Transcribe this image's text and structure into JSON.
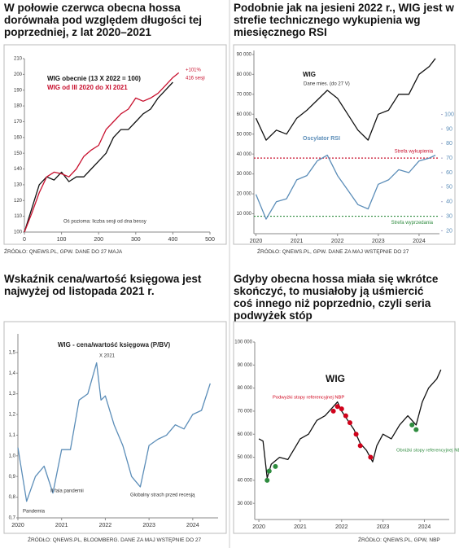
{
  "chart_data": [
    {
      "type": "line",
      "title": "W połowie czerwca obecna hossa dorównała pod względem długości tej poprzedniej, z lat 2020–2021",
      "source": "ŹRÓDŁO: QNEWS.PL, GPW. DANE DO 27 MAJA",
      "annotations": [
        "+101%",
        "416 sesji",
        "Oś pozioma: liczba sesji od dna bessy"
      ],
      "x": [
        0,
        20,
        40,
        60,
        80,
        100,
        120,
        140,
        160,
        180,
        200,
        220,
        240,
        260,
        280,
        300,
        320,
        340,
        360,
        380,
        400,
        416
      ],
      "series": [
        {
          "name": "WIG obecnie (13 X 2022 = 100)",
          "color": "#111111",
          "values": [
            100,
            115,
            130,
            135,
            133,
            138,
            132,
            135,
            135,
            140,
            145,
            150,
            160,
            165,
            165,
            170,
            175,
            178,
            185,
            190,
            195,
            null
          ]
        },
        {
          "name": "WIG od III 2020 do XI 2021",
          "color": "#c8102e",
          "values": [
            100,
            112,
            125,
            135,
            138,
            137,
            135,
            140,
            148,
            152,
            155,
            165,
            170,
            175,
            178,
            185,
            183,
            185,
            188,
            193,
            198,
            201
          ]
        }
      ],
      "xlim": [
        0,
        500
      ],
      "xticks": [
        0,
        100,
        200,
        300,
        400,
        500
      ],
      "ylim": [
        100,
        210
      ],
      "yticks": [
        100,
        110,
        120,
        130,
        140,
        150,
        160,
        170,
        180,
        190,
        200,
        210
      ]
    },
    {
      "type": "line",
      "title": "Podobnie jak na jesieni 2022 r., WIG jest w strefie technicznego wykupienia wg miesięcznego RSI",
      "source": "ŹRÓDŁO: QNEWS.PL, GPW. DANE ZA MAJ WSTĘPNIE DO 27",
      "annotations": [
        "Dane mies. (do 27 V)"
      ],
      "x": [
        2020.0,
        2020.25,
        2020.5,
        2020.75,
        2021.0,
        2021.25,
        2021.5,
        2021.75,
        2022.0,
        2022.25,
        2022.5,
        2022.75,
        2023.0,
        2023.25,
        2023.5,
        2023.75,
        2024.0,
        2024.25,
        2024.4
      ],
      "series": [
        {
          "name": "WIG",
          "color": "#111111",
          "values": [
            58000,
            47000,
            52000,
            50000,
            58000,
            62000,
            67000,
            72000,
            68000,
            60000,
            52000,
            47000,
            60000,
            62000,
            70000,
            70000,
            80000,
            84000,
            88000
          ]
        },
        {
          "name": "Oscylator RSI",
          "color": "#5b8db8",
          "axis": "y2",
          "values": [
            45,
            28,
            40,
            42,
            55,
            58,
            68,
            72,
            58,
            48,
            38,
            35,
            52,
            55,
            62,
            60,
            68,
            70,
            72
          ]
        }
      ],
      "reference_lines": [
        {
          "value": 70,
          "label": "Strefa wykupienia",
          "color": "#c8102e",
          "axis": "y2"
        },
        {
          "value": 30,
          "label": "Strefa wyprzedania",
          "color": "#2e8b3e",
          "axis": "y2"
        }
      ],
      "xlim": [
        2019.95,
        2024.5
      ],
      "xticks": [
        2020,
        2021,
        2022,
        2023,
        2024
      ],
      "ylim": [
        0,
        92000
      ],
      "yticks": [
        {
          "value": 10000,
          "label": "10 000"
        },
        {
          "value": 20000,
          "label": "20 000"
        },
        {
          "value": 30000,
          "label": "30 000"
        },
        {
          "value": 40000,
          "label": "40 000"
        },
        {
          "value": 50000,
          "label": "50 000"
        },
        {
          "value": 60000,
          "label": "60 000"
        },
        {
          "value": 70000,
          "label": "70 000"
        },
        {
          "value": 80000,
          "label": "80 000"
        },
        {
          "value": 90000,
          "label": "90 000"
        }
      ],
      "y2lim": [
        18,
        144
      ],
      "y2ticks": [
        20,
        30,
        40,
        50,
        60,
        70,
        80,
        90,
        100
      ]
    },
    {
      "type": "line",
      "title": "Wskaźnik cena/wartość księgowa jest najwyżej od listopada 2021 r.",
      "source": "ŹRÓDŁO: QNEWS.PL, BLOOMBERG. DANE ZA MAJ WSTĘPNIE DO 27",
      "annotations": [
        "WIG - cena/wartość księgowa (P/BV)",
        "X 2021",
        "Pandemia",
        "II fala pandemii",
        "Globalny strach przed recesją"
      ],
      "x": [
        2020.0,
        2020.2,
        2020.4,
        2020.6,
        2020.8,
        2021.0,
        2021.2,
        2021.4,
        2021.6,
        2021.8,
        2021.9,
        2022.0,
        2022.2,
        2022.4,
        2022.6,
        2022.8,
        2022.9,
        2023.0,
        2023.2,
        2023.4,
        2023.6,
        2023.8,
        2024.0,
        2024.2,
        2024.4
      ],
      "series": [
        {
          "name": "P/BV",
          "color": "#5b8db8",
          "values": [
            1.04,
            0.78,
            0.9,
            0.95,
            0.82,
            1.03,
            1.03,
            1.27,
            1.3,
            1.45,
            1.27,
            1.29,
            1.15,
            1.05,
            0.9,
            0.85,
            0.95,
            1.05,
            1.08,
            1.1,
            1.15,
            1.13,
            1.2,
            1.22,
            1.35
          ]
        }
      ],
      "xlim": [
        2020,
        2024.58
      ],
      "xticks": [
        2020,
        2021,
        2022,
        2023,
        2024
      ],
      "ylim": [
        0.7,
        1.59
      ],
      "yticks": [
        {
          "value": 0.7,
          "label": "0,7"
        },
        {
          "value": 0.8,
          "label": "0,8"
        },
        {
          "value": 0.9,
          "label": "0,9"
        },
        {
          "value": 1.0,
          "label": "1,0"
        },
        {
          "value": 1.1,
          "label": "1,1"
        },
        {
          "value": 1.2,
          "label": "1,2"
        },
        {
          "value": 1.3,
          "label": "1,3"
        },
        {
          "value": 1.4,
          "label": "1,4"
        },
        {
          "value": 1.5,
          "label": "1,5"
        }
      ]
    },
    {
      "type": "line",
      "title": "Gdyby obecna hossa miała się wkrótce skończyć, to musiałoby ją uśmiercić coś innego niż poprzednio, czyli seria podwyżek stóp",
      "source": "ŹRÓDŁO: QNEWS.PL, GPW, NBP",
      "series": [
        {
          "name": "WIG",
          "color": "#111111",
          "x": [
            2020.0,
            2020.1,
            2020.2,
            2020.3,
            2020.5,
            2020.7,
            2020.9,
            2021.0,
            2021.2,
            2021.4,
            2021.6,
            2021.8,
            2021.9,
            2022.0,
            2022.15,
            2022.3,
            2022.45,
            2022.6,
            2022.75,
            2022.85,
            2023.0,
            2023.2,
            2023.4,
            2023.6,
            2023.8,
            2023.95,
            2024.1,
            2024.3,
            2024.4
          ],
          "values": [
            58000,
            57000,
            41000,
            47000,
            50000,
            49000,
            55000,
            58000,
            60000,
            66000,
            68000,
            72000,
            74000,
            70000,
            66000,
            62000,
            56000,
            53000,
            48000,
            55000,
            60000,
            58000,
            64000,
            68000,
            64000,
            74000,
            80000,
            84000,
            88000
          ]
        },
        {
          "name": "Podwyżki stopy referencyjnej NBP",
          "color": "#d0021b",
          "type": "scatter",
          "x": [
            2021.8,
            2021.9,
            2022.0,
            2022.1,
            2022.2,
            2022.35,
            2022.45,
            2022.7
          ],
          "values": [
            70000,
            72000,
            71000,
            68000,
            65000,
            60000,
            55000,
            50000
          ]
        },
        {
          "name": "Obniżki stopy referencyjnej NBP",
          "color": "#2e8b3e",
          "type": "scatter",
          "x": [
            2020.2,
            2020.25,
            2020.4,
            2023.7,
            2023.8
          ],
          "values": [
            40000,
            44000,
            46000,
            64000,
            62000
          ]
        }
      ],
      "xlim": [
        2019.9,
        2024.6
      ],
      "xticks": [
        2020,
        2021,
        2022,
        2023,
        2024
      ],
      "ylim": [
        23000,
        100000
      ],
      "yticks": [
        {
          "value": 30000,
          "label": "30 000"
        },
        {
          "value": 40000,
          "label": "40 000"
        },
        {
          "value": 50000,
          "label": "50 000"
        },
        {
          "value": 60000,
          "label": "60 000"
        },
        {
          "value": 70000,
          "label": "70 000"
        },
        {
          "value": 80000,
          "label": "80 000"
        },
        {
          "value": 90000,
          "label": "90 000"
        },
        {
          "value": 100000,
          "label": "100 000"
        }
      ]
    }
  ]
}
